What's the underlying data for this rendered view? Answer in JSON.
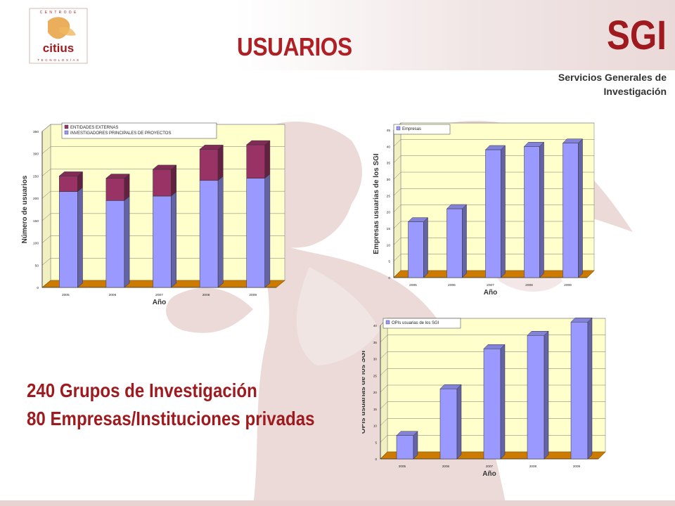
{
  "header": {
    "title": "USUARIOS",
    "brand": "SGI",
    "brand_subtitle_line1": "Servicios Generales de",
    "brand_subtitle_line2": "Investigación",
    "logo_text": "citius",
    "logo_ring_text": "CENTRO DE INVESTIGACIÓN EN TECNOLOXÍAS DA INFORMACIÓN"
  },
  "stats": {
    "groups": "240 Grupos de Investigación",
    "companies": "80 Empresas/Instituciones privadas"
  },
  "colors": {
    "accent": "#9e1a1e",
    "bar_primary": "#9999ff",
    "bar_secondary": "#993366",
    "plot_bg": "#ffffcc",
    "floor": "#cc7a00"
  },
  "chart_data": [
    {
      "type": "bar",
      "stacked": true,
      "categories": [
        "2005",
        "2006",
        "2007",
        "2008",
        "2009"
      ],
      "series": [
        {
          "name": "INVESTIGADORES PRINCIPALES DE PROYECTOS",
          "values": [
            215,
            195,
            205,
            240,
            245
          ]
        },
        {
          "name": "ENTIDADES EXTERNAS",
          "values": [
            35,
            50,
            60,
            70,
            75
          ]
        }
      ],
      "ylabel": "Número de usuarios",
      "xlabel": "Año",
      "ylim": [
        0,
        350
      ],
      "yticks": [
        "0",
        "50",
        "100",
        "150",
        "200",
        "250",
        "300",
        "350"
      ],
      "legend": "top-left"
    },
    {
      "type": "bar",
      "categories": [
        "2005",
        "2006",
        "2007",
        "2008",
        "2009"
      ],
      "series": [
        {
          "name": "Empresas",
          "values": [
            17,
            21,
            39,
            40,
            41
          ]
        }
      ],
      "ylabel": "Empresas usuarias de los SGI",
      "xlabel": "Año",
      "ylim": [
        0,
        45
      ],
      "yticks": [
        "0",
        "5",
        "10",
        "15",
        "20",
        "25",
        "30",
        "35",
        "40",
        "45"
      ],
      "legend": "top-left"
    },
    {
      "type": "bar",
      "categories": [
        "2005",
        "2006",
        "2007",
        "2008",
        "2009"
      ],
      "series": [
        {
          "name": "OPIs usuarias de los SGI",
          "values": [
            7,
            21,
            33,
            37,
            41
          ]
        }
      ],
      "ylabel": "OPIs usuarias de los SGI",
      "xlabel": "Año",
      "ylim": [
        0,
        40
      ],
      "yticks": [
        "0",
        "5",
        "10",
        "15",
        "20",
        "25",
        "30",
        "35",
        "40"
      ],
      "legend": "top-left"
    }
  ]
}
